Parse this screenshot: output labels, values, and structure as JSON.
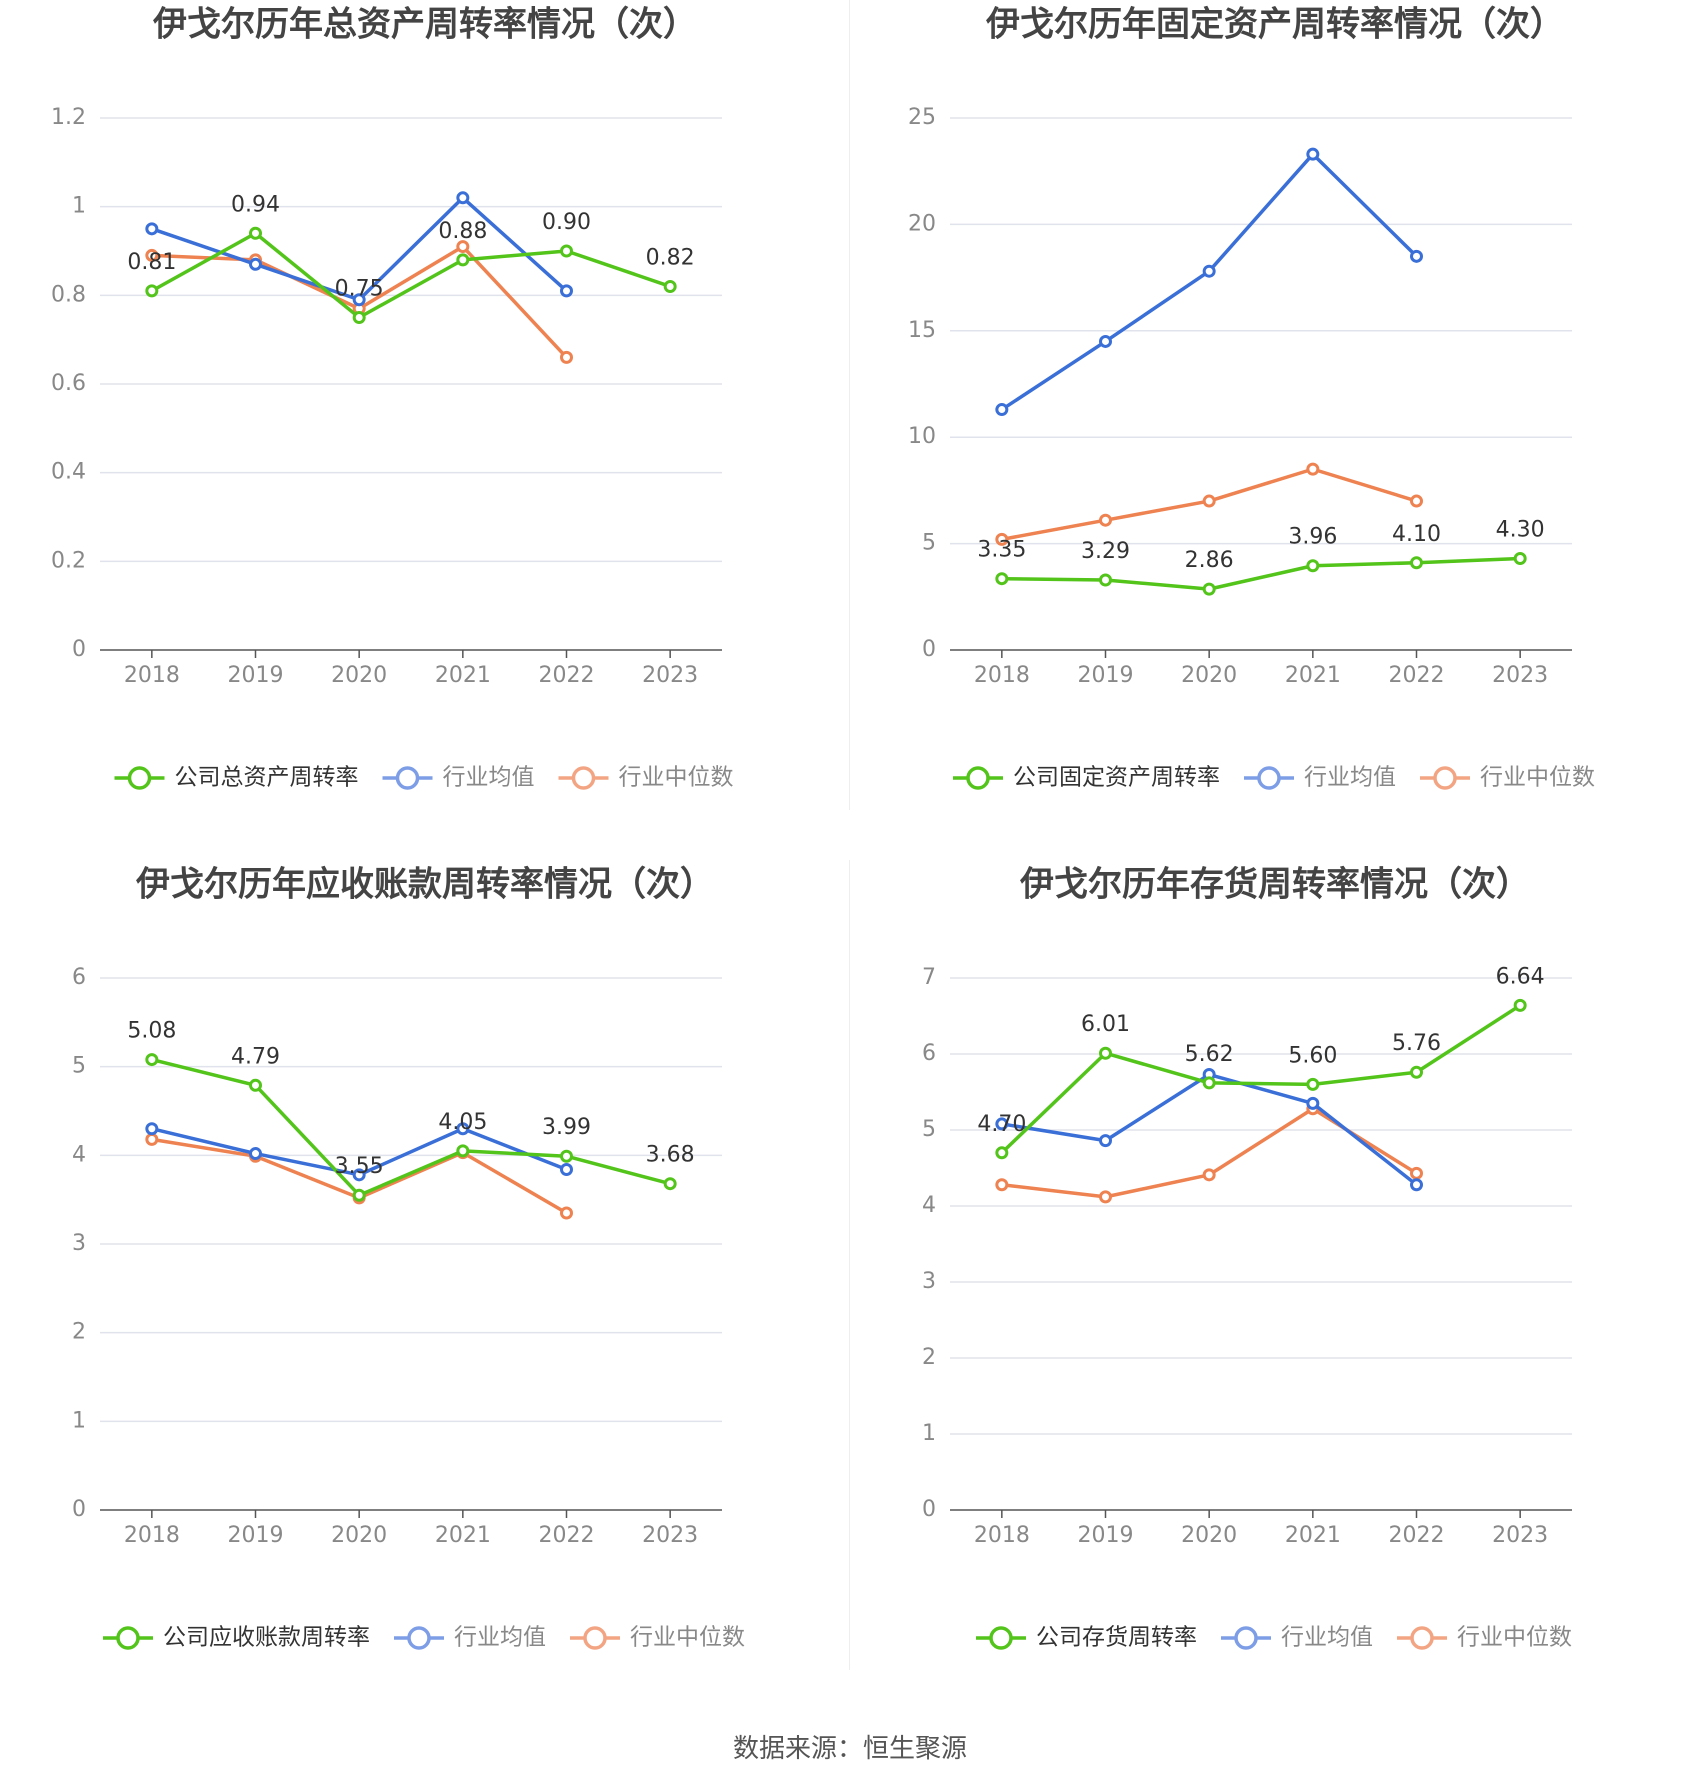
{
  "colors": {
    "company": "#52c41a",
    "average": "#3a6fd8",
    "median": "#ee8250",
    "grid": "#e0e3ec",
    "axis": "#555555",
    "tick": "#888888",
    "title": "#444444"
  },
  "charts": [
    {
      "type": "line",
      "title": "伊戈尔历年总资产周转率情况（次）",
      "categories": [
        "2018",
        "2019",
        "2020",
        "2021",
        "2022",
        "2023"
      ],
      "yticks": [
        "0",
        "0.2",
        "0.4",
        "0.6",
        "0.8",
        "1",
        "1.2"
      ],
      "ylim": [
        0,
        1.2
      ],
      "legend": [
        "公司总资产周转率",
        "行业均值",
        "行业中位数"
      ],
      "series": [
        {
          "name": "公司总资产周转率",
          "role": "company",
          "values": [
            0.81,
            0.94,
            0.75,
            0.88,
            0.9,
            0.82
          ],
          "labels": [
            "0.81",
            "0.94",
            "0.75",
            "0.88",
            "0.90",
            "0.82"
          ]
        },
        {
          "name": "行业均值",
          "role": "average",
          "values": [
            0.95,
            0.87,
            0.79,
            1.02,
            0.81,
            null
          ]
        },
        {
          "name": "行业中位数",
          "role": "median",
          "values": [
            0.89,
            0.88,
            0.77,
            0.91,
            0.66,
            null
          ]
        }
      ]
    },
    {
      "type": "line",
      "title": "伊戈尔历年固定资产周转率情况（次）",
      "categories": [
        "2018",
        "2019",
        "2020",
        "2021",
        "2022",
        "2023"
      ],
      "yticks": [
        "0",
        "5",
        "10",
        "15",
        "20",
        "25"
      ],
      "ylim": [
        0,
        25
      ],
      "legend": [
        "公司固定资产周转率",
        "行业均值",
        "行业中位数"
      ],
      "series": [
        {
          "name": "公司固定资产周转率",
          "role": "company",
          "values": [
            3.35,
            3.29,
            2.86,
            3.96,
            4.1,
            4.3
          ],
          "labels": [
            "3.35",
            "3.29",
            "2.86",
            "3.96",
            "4.10",
            "4.30"
          ]
        },
        {
          "name": "行业均值",
          "role": "average",
          "values": [
            11.3,
            14.5,
            17.8,
            23.3,
            18.5,
            null
          ]
        },
        {
          "name": "行业中位数",
          "role": "median",
          "values": [
            5.2,
            6.1,
            7.0,
            8.5,
            7.0,
            null
          ]
        }
      ]
    },
    {
      "type": "line",
      "title": "伊戈尔历年应收账款周转率情况（次）",
      "categories": [
        "2018",
        "2019",
        "2020",
        "2021",
        "2022",
        "2023"
      ],
      "yticks": [
        "0",
        "1",
        "2",
        "3",
        "4",
        "5",
        "6"
      ],
      "ylim": [
        0,
        6
      ],
      "legend": [
        "公司应收账款周转率",
        "行业均值",
        "行业中位数"
      ],
      "series": [
        {
          "name": "公司应收账款周转率",
          "role": "company",
          "values": [
            5.08,
            4.79,
            3.55,
            4.05,
            3.99,
            3.68
          ],
          "labels": [
            "5.08",
            "4.79",
            "3.55",
            "4.05",
            "3.99",
            "3.68"
          ]
        },
        {
          "name": "行业均值",
          "role": "average",
          "values": [
            4.3,
            4.02,
            3.78,
            4.3,
            3.84,
            null
          ]
        },
        {
          "name": "行业中位数",
          "role": "median",
          "values": [
            4.18,
            3.99,
            3.52,
            4.03,
            3.35,
            null
          ]
        }
      ]
    },
    {
      "type": "line",
      "title": "伊戈尔历年存货周转率情况（次）",
      "categories": [
        "2018",
        "2019",
        "2020",
        "2021",
        "2022",
        "2023"
      ],
      "yticks": [
        "0",
        "1",
        "2",
        "3",
        "4",
        "5",
        "6",
        "7"
      ],
      "ylim": [
        0,
        7
      ],
      "legend": [
        "公司存货周转率",
        "行业均值",
        "行业中位数"
      ],
      "series": [
        {
          "name": "公司存货周转率",
          "role": "company",
          "values": [
            4.7,
            6.01,
            5.62,
            5.6,
            5.76,
            6.64
          ],
          "labels": [
            "4.70",
            "6.01",
            "5.62",
            "5.60",
            "5.76",
            "6.64"
          ]
        },
        {
          "name": "行业均值",
          "role": "average",
          "values": [
            5.08,
            4.86,
            5.73,
            5.35,
            4.28,
            null
          ]
        },
        {
          "name": "行业中位数",
          "role": "median",
          "values": [
            4.28,
            4.12,
            4.41,
            5.28,
            4.43,
            null
          ]
        }
      ]
    }
  ],
  "footer": {
    "source": "数据来源：恒生聚源"
  }
}
